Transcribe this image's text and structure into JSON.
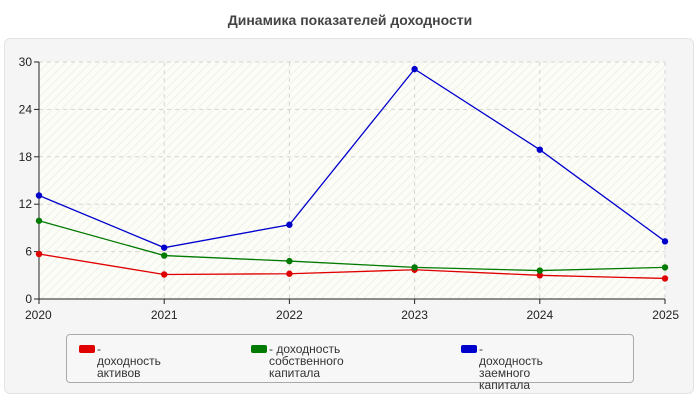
{
  "chart_data": {
    "type": "line",
    "title": "Динамика показателей доходности",
    "x": [
      "2020",
      "2021",
      "2022",
      "2023",
      "2024",
      "2025"
    ],
    "ylim": [
      0,
      30
    ],
    "yticks": [
      "0",
      "6",
      "12",
      "18",
      "24",
      "30"
    ],
    "grid": true,
    "legend_position": "bottom",
    "series": [
      {
        "name": "- доходность активов",
        "color": "#e00000",
        "values": [
          5.7,
          3.1,
          3.2,
          3.7,
          3.0,
          2.6
        ]
      },
      {
        "name": "- доходность собственного\nкапитала",
        "color": "#007a00",
        "values": [
          9.9,
          5.5,
          4.8,
          4.0,
          3.6,
          4.0
        ]
      },
      {
        "name": "- доходность заемного\nкапитала",
        "color": "#0000cc",
        "values": [
          13.1,
          6.5,
          9.4,
          29.1,
          18.9,
          7.3
        ]
      }
    ]
  }
}
